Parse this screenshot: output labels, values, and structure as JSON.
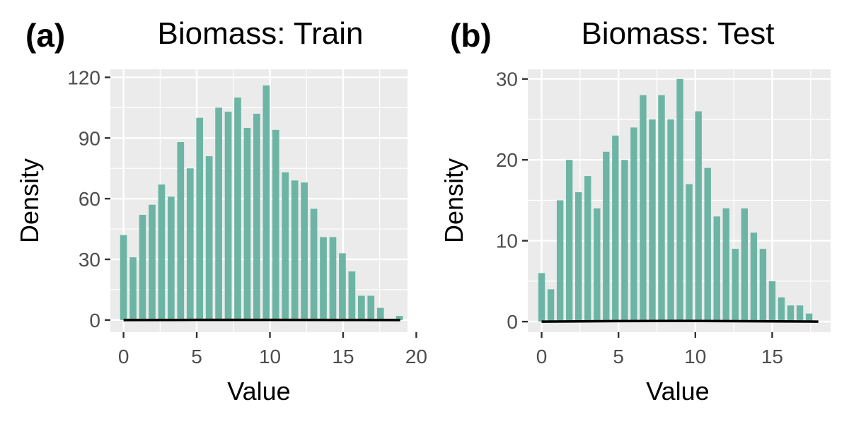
{
  "chart_data": [
    {
      "type": "bar",
      "panel_label": "(a)",
      "title": "Biomass: Train",
      "xlabel": "Value",
      "ylabel": "Density",
      "xlim": [
        -0.9,
        19.4
      ],
      "ylim": [
        -6,
        124
      ],
      "x_ticks": [
        0,
        5,
        10,
        15,
        20
      ],
      "y_ticks": [
        0,
        30,
        60,
        90,
        120
      ],
      "bin_width": 0.65,
      "grid": true,
      "bar_color": "#6cb5a4",
      "line_color": "#000000",
      "bars": [
        {
          "x": 0.0,
          "y": 42
        },
        {
          "x": 0.65,
          "y": 31
        },
        {
          "x": 1.3,
          "y": 52
        },
        {
          "x": 1.95,
          "y": 57
        },
        {
          "x": 2.6,
          "y": 67
        },
        {
          "x": 3.25,
          "y": 61
        },
        {
          "x": 3.9,
          "y": 88
        },
        {
          "x": 4.55,
          "y": 75
        },
        {
          "x": 5.2,
          "y": 100
        },
        {
          "x": 5.85,
          "y": 81
        },
        {
          "x": 6.5,
          "y": 105
        },
        {
          "x": 7.15,
          "y": 103
        },
        {
          "x": 7.8,
          "y": 110
        },
        {
          "x": 8.45,
          "y": 95
        },
        {
          "x": 9.1,
          "y": 102
        },
        {
          "x": 9.75,
          "y": 116
        },
        {
          "x": 10.4,
          "y": 94
        },
        {
          "x": 11.05,
          "y": 73
        },
        {
          "x": 11.7,
          "y": 69
        },
        {
          "x": 12.35,
          "y": 68
        },
        {
          "x": 13.0,
          "y": 55
        },
        {
          "x": 13.65,
          "y": 41
        },
        {
          "x": 14.3,
          "y": 41
        },
        {
          "x": 14.95,
          "y": 33
        },
        {
          "x": 15.6,
          "y": 24
        },
        {
          "x": 16.25,
          "y": 12
        },
        {
          "x": 16.9,
          "y": 12
        },
        {
          "x": 17.55,
          "y": 6
        },
        {
          "x": 18.85,
          "y": 2
        }
      ],
      "density_line": [
        {
          "x": 0,
          "y": 0.0
        },
        {
          "x": 5,
          "y": 0.06
        },
        {
          "x": 10,
          "y": 0.06
        },
        {
          "x": 15,
          "y": 0.03
        },
        {
          "x": 18.9,
          "y": 0.0
        }
      ]
    },
    {
      "type": "bar",
      "panel_label": "(b)",
      "title": "Biomass: Test",
      "xlabel": "Value",
      "ylabel": "Density",
      "xlim": [
        -0.9,
        18.8
      ],
      "ylim": [
        -1.3,
        31.2
      ],
      "x_ticks": [
        0,
        5,
        10,
        15
      ],
      "y_ticks": [
        0,
        10,
        20,
        30
      ],
      "bin_width": 0.6,
      "grid": true,
      "bar_color": "#6cb5a4",
      "line_color": "#000000",
      "bars": [
        {
          "x": 0.0,
          "y": 6
        },
        {
          "x": 0.6,
          "y": 4
        },
        {
          "x": 1.2,
          "y": 15
        },
        {
          "x": 1.8,
          "y": 20
        },
        {
          "x": 2.4,
          "y": 16
        },
        {
          "x": 3.0,
          "y": 18
        },
        {
          "x": 3.6,
          "y": 14
        },
        {
          "x": 4.2,
          "y": 21
        },
        {
          "x": 4.8,
          "y": 23
        },
        {
          "x": 5.4,
          "y": 20
        },
        {
          "x": 6.0,
          "y": 24
        },
        {
          "x": 6.6,
          "y": 28
        },
        {
          "x": 7.2,
          "y": 25
        },
        {
          "x": 7.8,
          "y": 28
        },
        {
          "x": 8.4,
          "y": 25
        },
        {
          "x": 9.0,
          "y": 30
        },
        {
          "x": 9.6,
          "y": 17
        },
        {
          "x": 10.2,
          "y": 26
        },
        {
          "x": 10.8,
          "y": 19
        },
        {
          "x": 11.4,
          "y": 13
        },
        {
          "x": 12.0,
          "y": 14
        },
        {
          "x": 12.6,
          "y": 9
        },
        {
          "x": 13.2,
          "y": 14
        },
        {
          "x": 13.8,
          "y": 11
        },
        {
          "x": 14.4,
          "y": 9
        },
        {
          "x": 15.0,
          "y": 5
        },
        {
          "x": 15.6,
          "y": 3
        },
        {
          "x": 16.2,
          "y": 2
        },
        {
          "x": 16.8,
          "y": 2
        },
        {
          "x": 17.4,
          "y": 1
        }
      ],
      "density_line": [
        {
          "x": 0,
          "y": 0.0
        },
        {
          "x": 5,
          "y": 0.06
        },
        {
          "x": 9,
          "y": 0.09
        },
        {
          "x": 14,
          "y": 0.04
        },
        {
          "x": 18,
          "y": 0.0
        }
      ]
    }
  ]
}
